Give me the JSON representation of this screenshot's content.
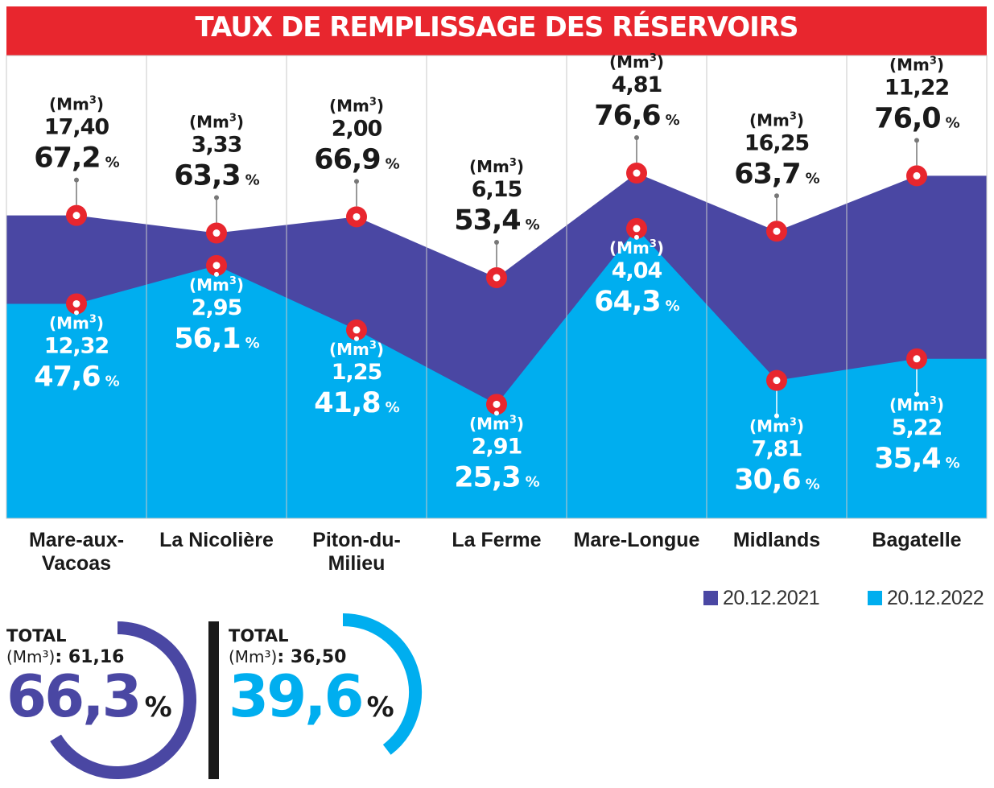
{
  "title": "TAUX DE REMPLISSAGE DES RÉSERVOIRS",
  "colors": {
    "banner": "#e8262e",
    "s2021": "#4a47a3",
    "s2022": "#00aeef",
    "marker": "#e8262e"
  },
  "unit_label": "Mm",
  "percent_sign": "%",
  "chart_data": {
    "type": "area",
    "categories": [
      "Mare-aux-Vacoas",
      "La Nicolière",
      "Piton-du-Milieu",
      "La Ferme",
      "Mare-Longue",
      "Midlands",
      "Bagatelle"
    ],
    "category_lines": [
      [
        "Mare-aux-",
        "Vacoas"
      ],
      [
        "La Nicolière"
      ],
      [
        "Piton-du-",
        "Milieu"
      ],
      [
        "La Ferme"
      ],
      [
        "Mare-Longue"
      ],
      [
        "Midlands"
      ],
      [
        "Bagatelle"
      ]
    ],
    "series": [
      {
        "name": "20.12.2021",
        "percent": [
          67.2,
          63.3,
          66.9,
          53.4,
          76.6,
          63.7,
          76.0
        ],
        "percent_labels": [
          "67,2",
          "63,3",
          "66,9",
          "53,4",
          "76,6",
          "63,7",
          "76,0"
        ],
        "volume_labels": [
          "17,40",
          "3,33",
          "2,00",
          "6,15",
          "4,81",
          "16,25",
          "11,22"
        ]
      },
      {
        "name": "20.12.2022",
        "percent": [
          47.6,
          56.1,
          41.8,
          25.3,
          64.3,
          30.6,
          35.4
        ],
        "percent_labels": [
          "47,6",
          "56,1",
          "41,8",
          "25,3",
          "64,3",
          "30,6",
          "35,4"
        ],
        "volume_labels": [
          "12,32",
          "2,95",
          "1,25",
          "2,91",
          "4,04",
          "7,81",
          "5,22"
        ]
      }
    ],
    "ylim": [
      0,
      100
    ],
    "legend": "bottom-right"
  },
  "totals": [
    {
      "label": "TOTAL",
      "unit": "(Mm³)",
      "volume": "61,16",
      "percent_text": "66,3",
      "percent": 66.3
    },
    {
      "label": "TOTAL",
      "unit": "(Mm³)",
      "volume": "36,50",
      "percent_text": "39,6",
      "percent": 39.6
    }
  ]
}
